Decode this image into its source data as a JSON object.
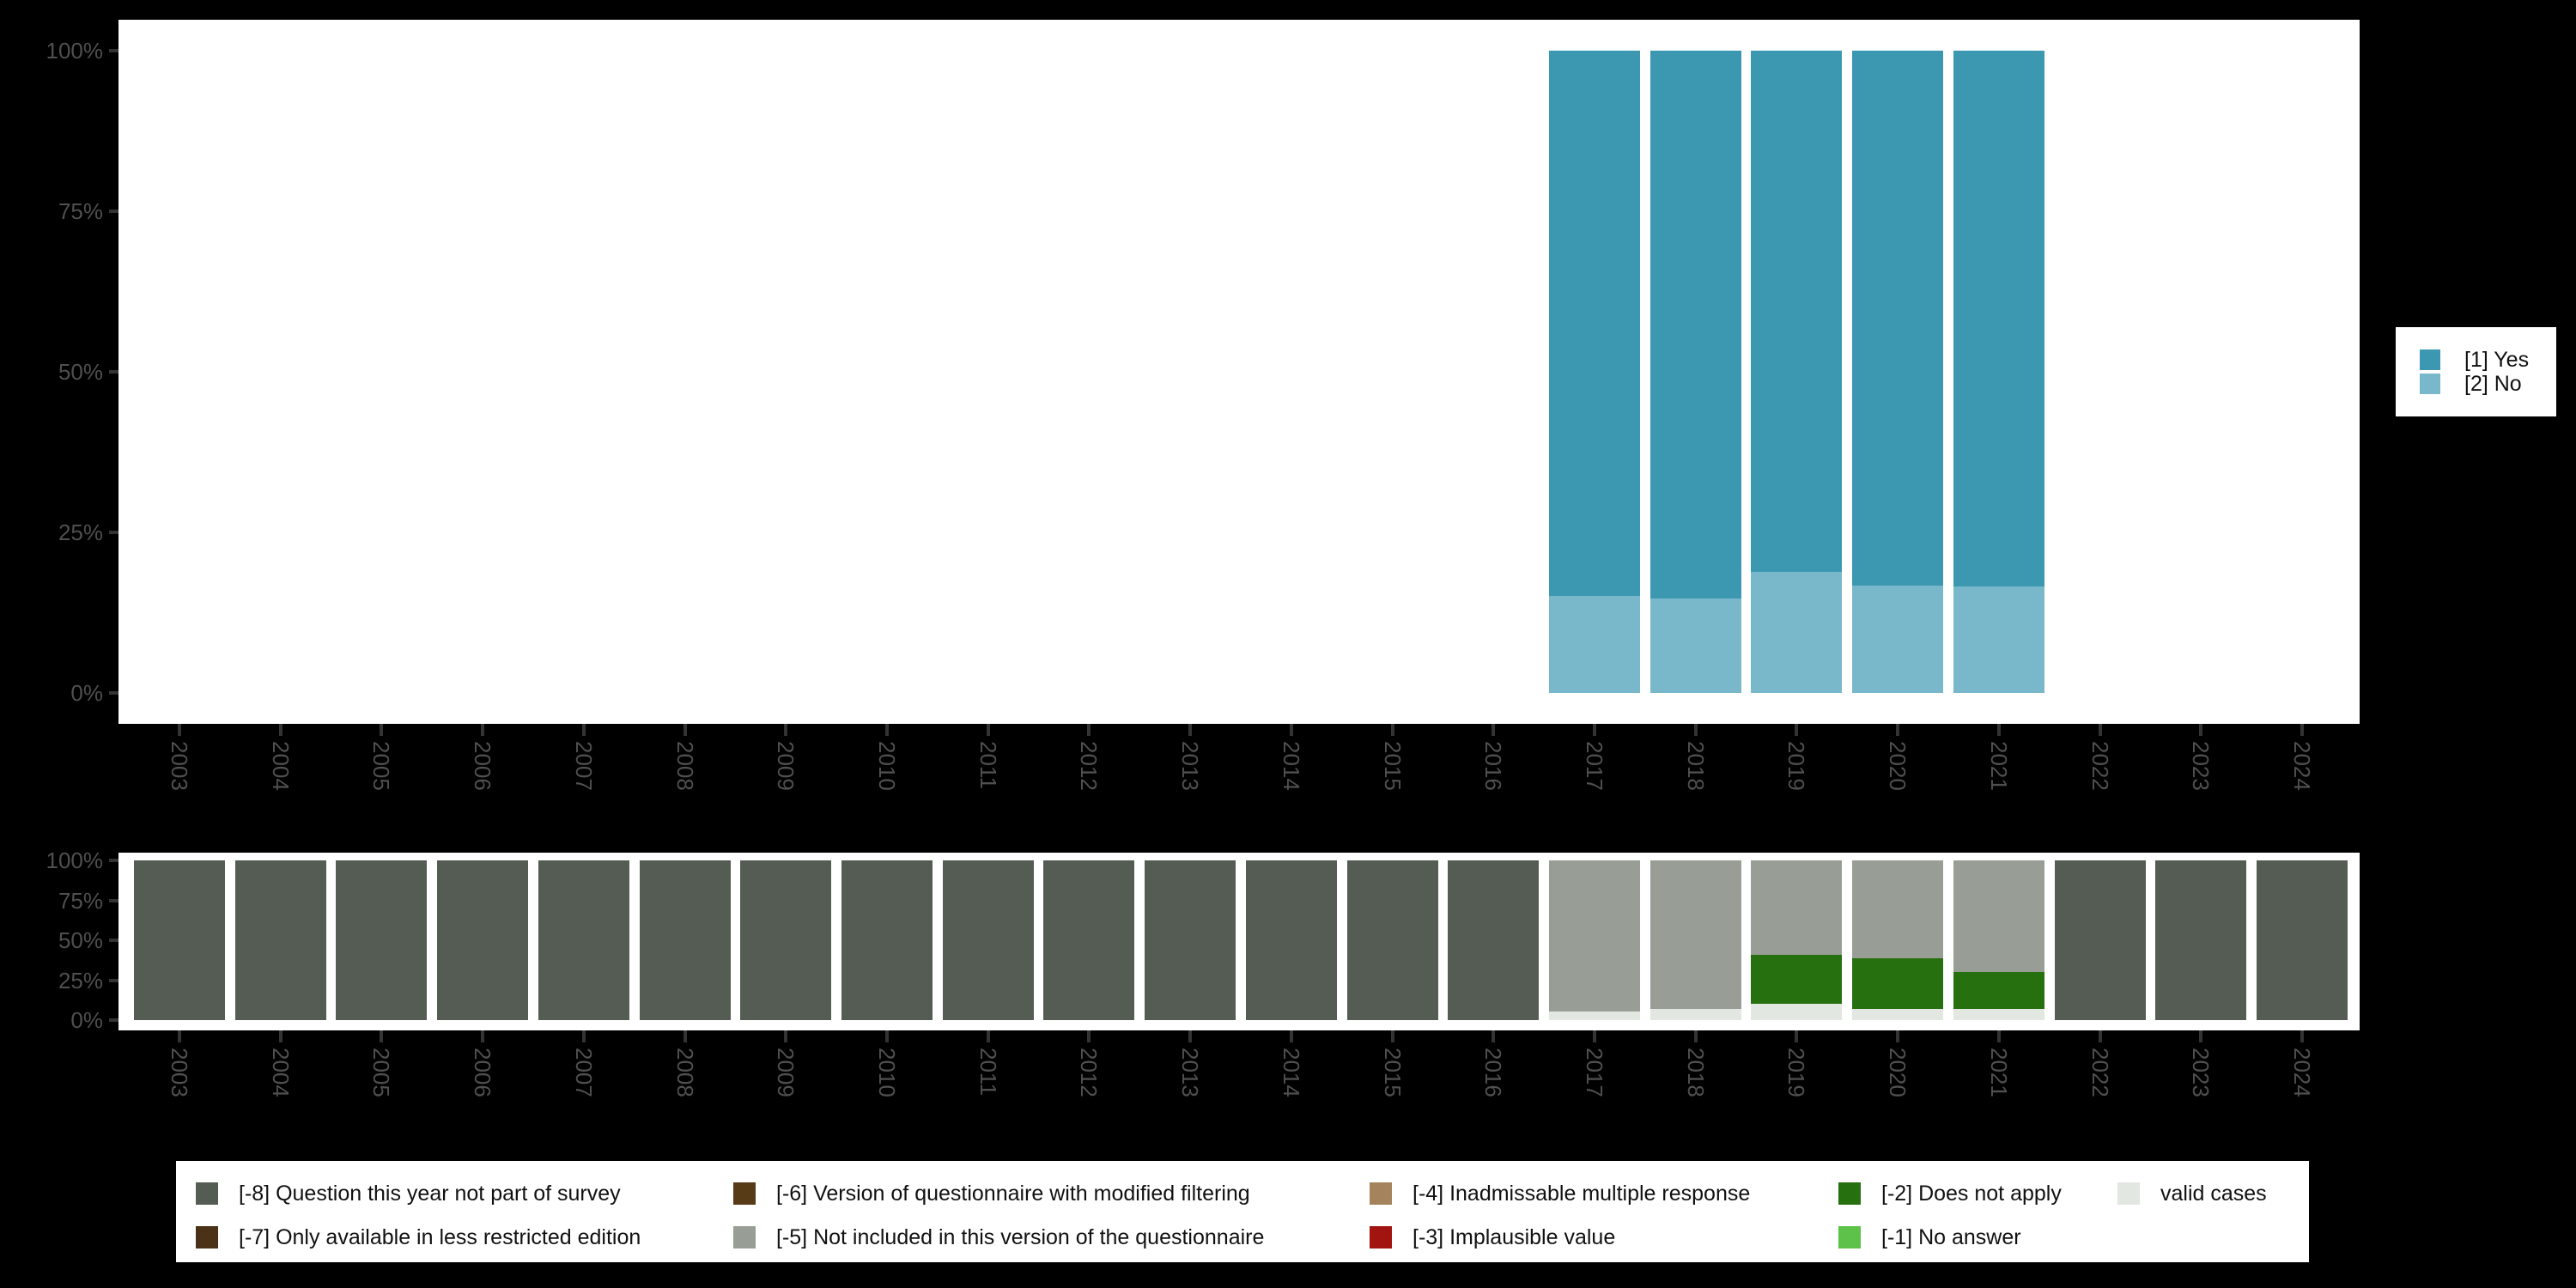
{
  "palette": {
    "yes": "#3c98b1",
    "no": "#79b8ca",
    "m8": "#545c54",
    "m7": "#4a3118",
    "m6": "#573a16",
    "m5": "#989e95",
    "m4": "#a5835c",
    "m3": "#a21410",
    "m2": "#26700f",
    "m1": "#5dc24a",
    "valid": "#e3e7e1",
    "axis_text": "#4f4f4f",
    "axis_tick": "#333333",
    "plot_background": "#ffffff",
    "page_background": "#000000"
  },
  "chart_data": [
    {
      "type": "bar",
      "stacked_percent": true,
      "title": "",
      "xlabel": "",
      "ylabel": "",
      "ylim": [
        0,
        100
      ],
      "y_tick_labels": [
        "100%",
        "75%",
        "50%",
        "25%",
        "0%"
      ],
      "x": [
        "2003",
        "2004",
        "2005",
        "2006",
        "2007",
        "2008",
        "2009",
        "2010",
        "2011",
        "2012",
        "2013",
        "2014",
        "2015",
        "2016",
        "2017",
        "2018",
        "2019",
        "2020",
        "2021",
        "2022",
        "2023",
        "2024"
      ],
      "series": [
        {
          "name": "[2] No",
          "color": "no",
          "values": [
            null,
            null,
            null,
            null,
            null,
            null,
            null,
            null,
            null,
            null,
            null,
            null,
            null,
            null,
            15.1,
            14.7,
            18.9,
            16.7,
            16.6,
            null,
            null,
            null
          ]
        },
        {
          "name": "[1] Yes",
          "color": "yes",
          "values": [
            null,
            null,
            null,
            null,
            null,
            null,
            null,
            null,
            null,
            null,
            null,
            null,
            null,
            null,
            84.9,
            85.3,
            81.1,
            83.3,
            83.4,
            null,
            null,
            null
          ]
        }
      ],
      "legend": {
        "position": "right",
        "entries": [
          {
            "label": "[1] Yes",
            "color": "yes"
          },
          {
            "label": "[2] No",
            "color": "no"
          }
        ]
      }
    },
    {
      "type": "bar",
      "stacked_percent": true,
      "title": "",
      "xlabel": "",
      "ylabel": "",
      "ylim": [
        0,
        100
      ],
      "y_tick_labels": [
        "100%",
        "75%",
        "50%",
        "25%",
        "0%"
      ],
      "x": [
        "2003",
        "2004",
        "2005",
        "2006",
        "2007",
        "2008",
        "2009",
        "2010",
        "2011",
        "2012",
        "2013",
        "2014",
        "2015",
        "2016",
        "2017",
        "2018",
        "2019",
        "2020",
        "2021",
        "2022",
        "2023",
        "2024"
      ],
      "series": [
        {
          "name": "valid cases",
          "color": "valid",
          "values": [
            0,
            0,
            0,
            0,
            0,
            0,
            0,
            0,
            0,
            0,
            0,
            0,
            0,
            0,
            5.5,
            7,
            10,
            7,
            7,
            0,
            0,
            0
          ]
        },
        {
          "name": "[-2] Does not apply",
          "color": "m2",
          "values": [
            0,
            0,
            0,
            0,
            0,
            0,
            0,
            0,
            0,
            0,
            0,
            0,
            0,
            0,
            0,
            0,
            31,
            32,
            23,
            0,
            0,
            0
          ]
        },
        {
          "name": "[-5] Not included in this version of the questionnaire",
          "color": "m5",
          "values": [
            0,
            0,
            0,
            0,
            0,
            0,
            0,
            0,
            0,
            0,
            0,
            0,
            0,
            0,
            94.5,
            93,
            59,
            61,
            70,
            0,
            0,
            0
          ]
        },
        {
          "name": "[-8] Question this year not part of survey",
          "color": "m8",
          "values": [
            100,
            100,
            100,
            100,
            100,
            100,
            100,
            100,
            100,
            100,
            100,
            100,
            100,
            100,
            0,
            0,
            0,
            0,
            0,
            100,
            100,
            100
          ]
        }
      ],
      "legend": {
        "position": "bottom",
        "entries": [
          {
            "label": "[-8] Question this year not part of survey",
            "color": "m8"
          },
          {
            "label": "[-7] Only available in less restricted edition",
            "color": "m7"
          },
          {
            "label": "[-6] Version of questionnaire with modified filtering",
            "color": "m6"
          },
          {
            "label": "[-5] Not included in this version of the questionnaire",
            "color": "m5"
          },
          {
            "label": "[-4] Inadmissable multiple response",
            "color": "m4"
          },
          {
            "label": "[-3] Implausible value",
            "color": "m3"
          },
          {
            "label": "[-2] Does not apply",
            "color": "m2"
          },
          {
            "label": "[-1] No answer",
            "color": "m1"
          },
          {
            "label": "valid cases",
            "color": "valid"
          }
        ]
      }
    }
  ]
}
